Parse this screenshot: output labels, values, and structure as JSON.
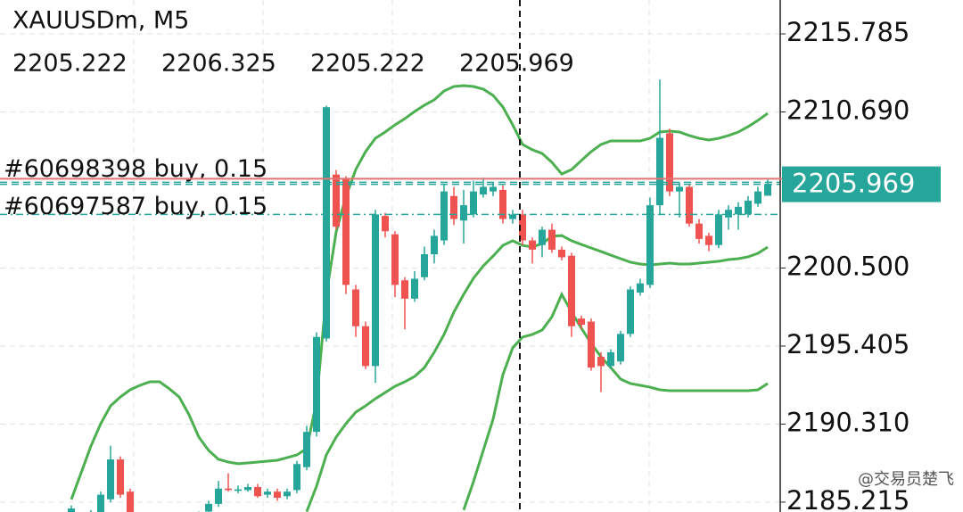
{
  "chart_data": {
    "type": "candlestick",
    "symbol": "XAUUSDm, M5",
    "ohlc": [
      2205.222,
      2206.325,
      2205.222,
      2205.969
    ],
    "up_color": "#26a69a",
    "down_color": "#ef5350",
    "open": [
      2184.2,
      2183.8,
      2184.0,
      2184.3,
      2185.4,
      2188.0,
      2185.9,
      2184.2,
      2183.6,
      2184.0,
      2183.5,
      2183.9,
      2184.2,
      2183.8,
      2184.6,
      2185.1,
      2186.1,
      2185.95,
      2186.0,
      2186.2,
      2185.7,
      2185.9,
      2185.6,
      2186.0,
      2187.5,
      2189.8,
      2195.9,
      2206.6,
      2206.3,
      2199.1,
      2196.7,
      2194.1,
      2203.9,
      2202.7,
      2199.7,
      2198.5,
      2199.9,
      2201.4,
      2202.3,
      2205.2,
      2203.6,
      2204.0,
      2205.3,
      2205.5,
      2205.6,
      2203.7,
      2204.0,
      2202.3,
      2202.0,
      2203.0,
      2201.7,
      2201.3,
      2197.2,
      2197.0,
      2194.7,
      2194.1,
      2194.4,
      2196.2,
      2198.9,
      2199.4,
      2204.6,
      2209.3,
      2205.5,
      2205.8,
      2203.4,
      2202.6,
      2202.0,
      2203.8,
      2204.0,
      2204.0,
      2204.7,
      2205.222
    ],
    "high": [
      2185.0,
      2184.5,
      2184.7,
      2185.9,
      2188.9,
      2188.2,
      2186.1,
      2184.4,
      2184.2,
      2184.2,
      2184.1,
      2184.4,
      2184.4,
      2184.6,
      2185.3,
      2186.6,
      2187.1,
      2186.3,
      2186.4,
      2186.4,
      2186.1,
      2186.1,
      2186.1,
      2187.9,
      2190.2,
      2196.3,
      2211.1,
      2206.9,
      2206.5,
      2199.4,
      2197.0,
      2204.3,
      2204.1,
      2202.9,
      2199.9,
      2200.3,
      2201.9,
      2203.0,
      2206.0,
      2205.8,
      2205.6,
      2206.2,
      2206.4,
      2206.1,
      2205.9,
      2204.3,
      2204.3,
      2202.5,
      2203.2,
      2203.4,
      2201.9,
      2201.5,
      2197.4,
      2197.2,
      2195.0,
      2195.2,
      2196.4,
      2199.3,
      2199.8,
      2205.1,
      2212.8,
      2209.6,
      2206.1,
      2206.0,
      2203.7,
      2202.8,
      2204.3,
      2204.6,
      2204.8,
      2205.2,
      2205.8,
      2206.325
    ],
    "low": [
      2184.0,
      2183.6,
      2183.8,
      2184.1,
      2185.2,
      2185.5,
      2184.0,
      2183.4,
      2183.4,
      2183.3,
      2183.3,
      2183.7,
      2183.6,
      2183.6,
      2184.4,
      2184.9,
      2185.9,
      2185.8,
      2185.9,
      2185.5,
      2185.5,
      2185.3,
      2185.4,
      2185.8,
      2187.3,
      2189.5,
      2195.7,
      2203.0,
      2198.8,
      2196.0,
      2193.9,
      2193.0,
      2202.5,
      2198.6,
      2196.5,
      2198.3,
      2199.7,
      2200.8,
      2202.0,
      2203.3,
      2202.1,
      2203.8,
      2205.1,
      2205.2,
      2203.4,
      2203.4,
      2202.0,
      2200.8,
      2201.2,
      2201.5,
      2201.0,
      2196.0,
      2196.5,
      2193.8,
      2192.4,
      2193.9,
      2194.2,
      2196.0,
      2198.7,
      2199.2,
      2204.0,
      2205.2,
      2203.8,
      2203.2,
      2202.1,
      2201.6,
      2201.8,
      2203.0,
      2203.0,
      2203.8,
      2204.5,
      2205.222
    ],
    "close": [
      2184.8,
      2184.3,
      2184.5,
      2185.7,
      2188.0,
      2185.7,
      2184.2,
      2183.6,
      2184.0,
      2183.5,
      2183.9,
      2184.2,
      2183.8,
      2184.4,
      2185.1,
      2186.1,
      2186.0,
      2186.05,
      2186.2,
      2185.6,
      2185.9,
      2185.5,
      2185.9,
      2187.7,
      2189.8,
      2196.0,
      2211.0,
      2203.2,
      2199.4,
      2196.7,
      2194.1,
      2204.0,
      2202.9,
      2199.4,
      2198.5,
      2199.8,
      2201.4,
      2202.6,
      2205.5,
      2203.7,
      2204.6,
      2205.5,
      2205.8,
      2205.8,
      2203.7,
      2204.0,
      2202.3,
      2201.7,
      2203.0,
      2201.7,
      2201.2,
      2196.7,
      2196.8,
      2194.0,
      2194.1,
      2195.0,
      2196.2,
      2199.1,
      2199.5,
      2204.6,
      2209.0,
      2205.5,
      2205.8,
      2203.4,
      2202.4,
      2202.0,
      2204.0,
      2204.3,
      2204.5,
      2204.9,
      2205.5,
      2205.969
    ],
    "indicator_lines": [
      {
        "color": "#4caf50",
        "values": [
          2185.39,
          2187.13,
          2188.88,
          2190.34,
          2191.5,
          2192.08,
          2192.55,
          2192.84,
          2193.07,
          2193.07,
          2192.61,
          2192.08,
          2190.92,
          2189.46,
          2188.59,
          2188.01,
          2187.83,
          2187.72,
          2187.77,
          2187.83,
          2187.89,
          2187.95,
          2188.12,
          2188.3,
          2188.71,
          2191.79,
          2198.78,
          2202.86,
          2205.19,
          2206.93,
          2208.1,
          2208.97,
          2209.38,
          2209.85,
          2210.25,
          2210.72,
          2211.13,
          2211.48,
          2212.06,
          2212.35,
          2212.41,
          2212.35,
          2212.18,
          2211.77,
          2211.01,
          2209.85,
          2208.57,
          2208.22,
          2207.98,
          2207.4,
          2206.64,
          2206.93,
          2207.52,
          2208.1,
          2208.57,
          2208.8,
          2208.8,
          2208.8,
          2208.8,
          2208.97,
          2209.38,
          2209.44,
          2209.38,
          2209.15,
          2208.97,
          2208.86,
          2208.97,
          2209.15,
          2209.38,
          2209.73,
          2210.14,
          2210.6
        ]
      },
      {
        "color": "#4caf50",
        "values": [
          null,
          null,
          null,
          null,
          null,
          null,
          null,
          null,
          null,
          null,
          null,
          null,
          null,
          null,
          null,
          null,
          null,
          null,
          null,
          null,
          null,
          null,
          null,
          null,
          2184.6,
          2186.26,
          2188.3,
          2189.46,
          2190.34,
          2191.09,
          2191.5,
          2191.97,
          2192.37,
          2192.78,
          2193.07,
          2193.42,
          2194.0,
          2195.0,
          2196.16,
          2197.62,
          2198.78,
          2199.83,
          2200.64,
          2201.28,
          2201.98,
          2202.28,
          2201.98,
          2201.87,
          2202.1,
          2202.57,
          2202.62,
          2202.28,
          2202.04,
          2201.81,
          2201.58,
          2201.34,
          2201.11,
          2200.88,
          2200.76,
          2200.7,
          2200.76,
          2200.82,
          2200.76,
          2200.76,
          2200.82,
          2200.88,
          2200.94,
          2201.05,
          2201.11,
          2201.23,
          2201.46,
          2201.87
        ]
      },
      {
        "color": "#4caf50",
        "values": [
          null,
          null,
          null,
          null,
          null,
          null,
          null,
          null,
          null,
          null,
          null,
          null,
          null,
          null,
          null,
          null,
          null,
          null,
          null,
          null,
          null,
          null,
          null,
          null,
          null,
          null,
          null,
          null,
          null,
          null,
          null,
          null,
          null,
          null,
          null,
          null,
          null,
          null,
          null,
          null,
          2184.7,
          2186.55,
          2188.59,
          2190.63,
          2193.54,
          2195.29,
          2195.99,
          2196.16,
          2196.45,
          2197.32,
          2198.78,
          2197.62,
          2196.57,
          2195.58,
          2194.7,
          2194.0,
          2193.25,
          2192.96,
          2192.84,
          2192.72,
          2192.55,
          2192.49,
          2192.49,
          2192.49,
          2192.49,
          2192.49,
          2192.49,
          2192.49,
          2192.49,
          2192.49,
          2192.55,
          2192.96
        ]
      }
    ],
    "orders": [
      {
        "label": "#60698398 buy, 0.15",
        "price": 2206.1
      },
      {
        "label": "#60697587 buy, 0.15",
        "price": 2204.0
      }
    ],
    "ask": 2206.33,
    "last_price": 2205.969,
    "ylim": [
      2184.57,
      2218.0
    ],
    "yticks": [
      2215.785,
      {
        "value": 2210.69,
        "label": "2210.690"
      },
      {
        "value": 2200.5,
        "label": "2200.500"
      },
      2195.405,
      {
        "value": 2190.31,
        "label": "2190.310"
      },
      2185.215
    ],
    "grid": true,
    "watermark": "@交易员楚飞"
  }
}
